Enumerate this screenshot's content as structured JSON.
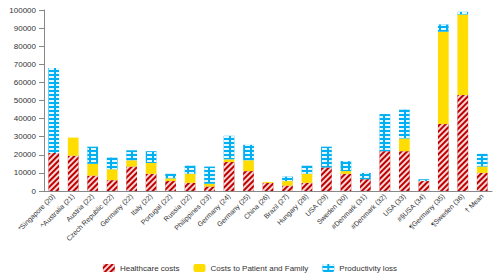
{
  "chart_data": {
    "type": "bar",
    "stacked": true,
    "grid": false,
    "legend": "bottom",
    "categories": [
      "*Singapore (20)",
      "^Australia (21)",
      "Austria (22)",
      "Czech Republic (22)",
      "Germany (22)",
      "Italy (22)",
      "Portugal (22)",
      "Russia (22)",
      "Philippines (23)",
      "Germany (24)",
      "Germany (25)",
      "China (26)",
      "Brazil (27)",
      "Hungary (28)",
      "USA (29)",
      "Sweden (30)",
      "#Denmark (31)",
      "#Denmark (32)",
      "USA (33)",
      "#§USA (34)",
      "¶Germany (35)",
      "¶Sweden (36)",
      "† Mean"
    ],
    "ylim": [
      0,
      100000
    ],
    "yticks": [
      0,
      10000,
      20000,
      30000,
      40000,
      50000,
      60000,
      70000,
      80000,
      90000,
      100000
    ],
    "series": [
      {
        "name": "Healthcare costs",
        "color": "#c00000",
        "values": [
          21000,
          19500,
          8500,
          6000,
          13500,
          9500,
          5500,
          4500,
          2500,
          16000,
          11000,
          4500,
          3000,
          4500,
          13000,
          9500,
          6500,
          22000,
          22000,
          5500,
          37000,
          53000,
          10000
        ]
      },
      {
        "name": "Costs to Patient and Family",
        "color": "#ffdd00",
        "values": [
          0,
          10000,
          6500,
          6000,
          3500,
          6000,
          1500,
          5000,
          1500,
          1500,
          6000,
          500,
          2500,
          5000,
          0,
          1500,
          0,
          0,
          7000,
          0,
          51000,
          44500,
          3500
        ]
      },
      {
        "name": "Productivity loss",
        "color": "#00b0f0",
        "values": [
          47000,
          0,
          9500,
          6500,
          5500,
          6500,
          2500,
          4500,
          9500,
          13000,
          8500,
          0,
          2500,
          4500,
          11500,
          5500,
          3500,
          20500,
          16000,
          1000,
          4000,
          1500,
          7000
        ]
      }
    ]
  }
}
